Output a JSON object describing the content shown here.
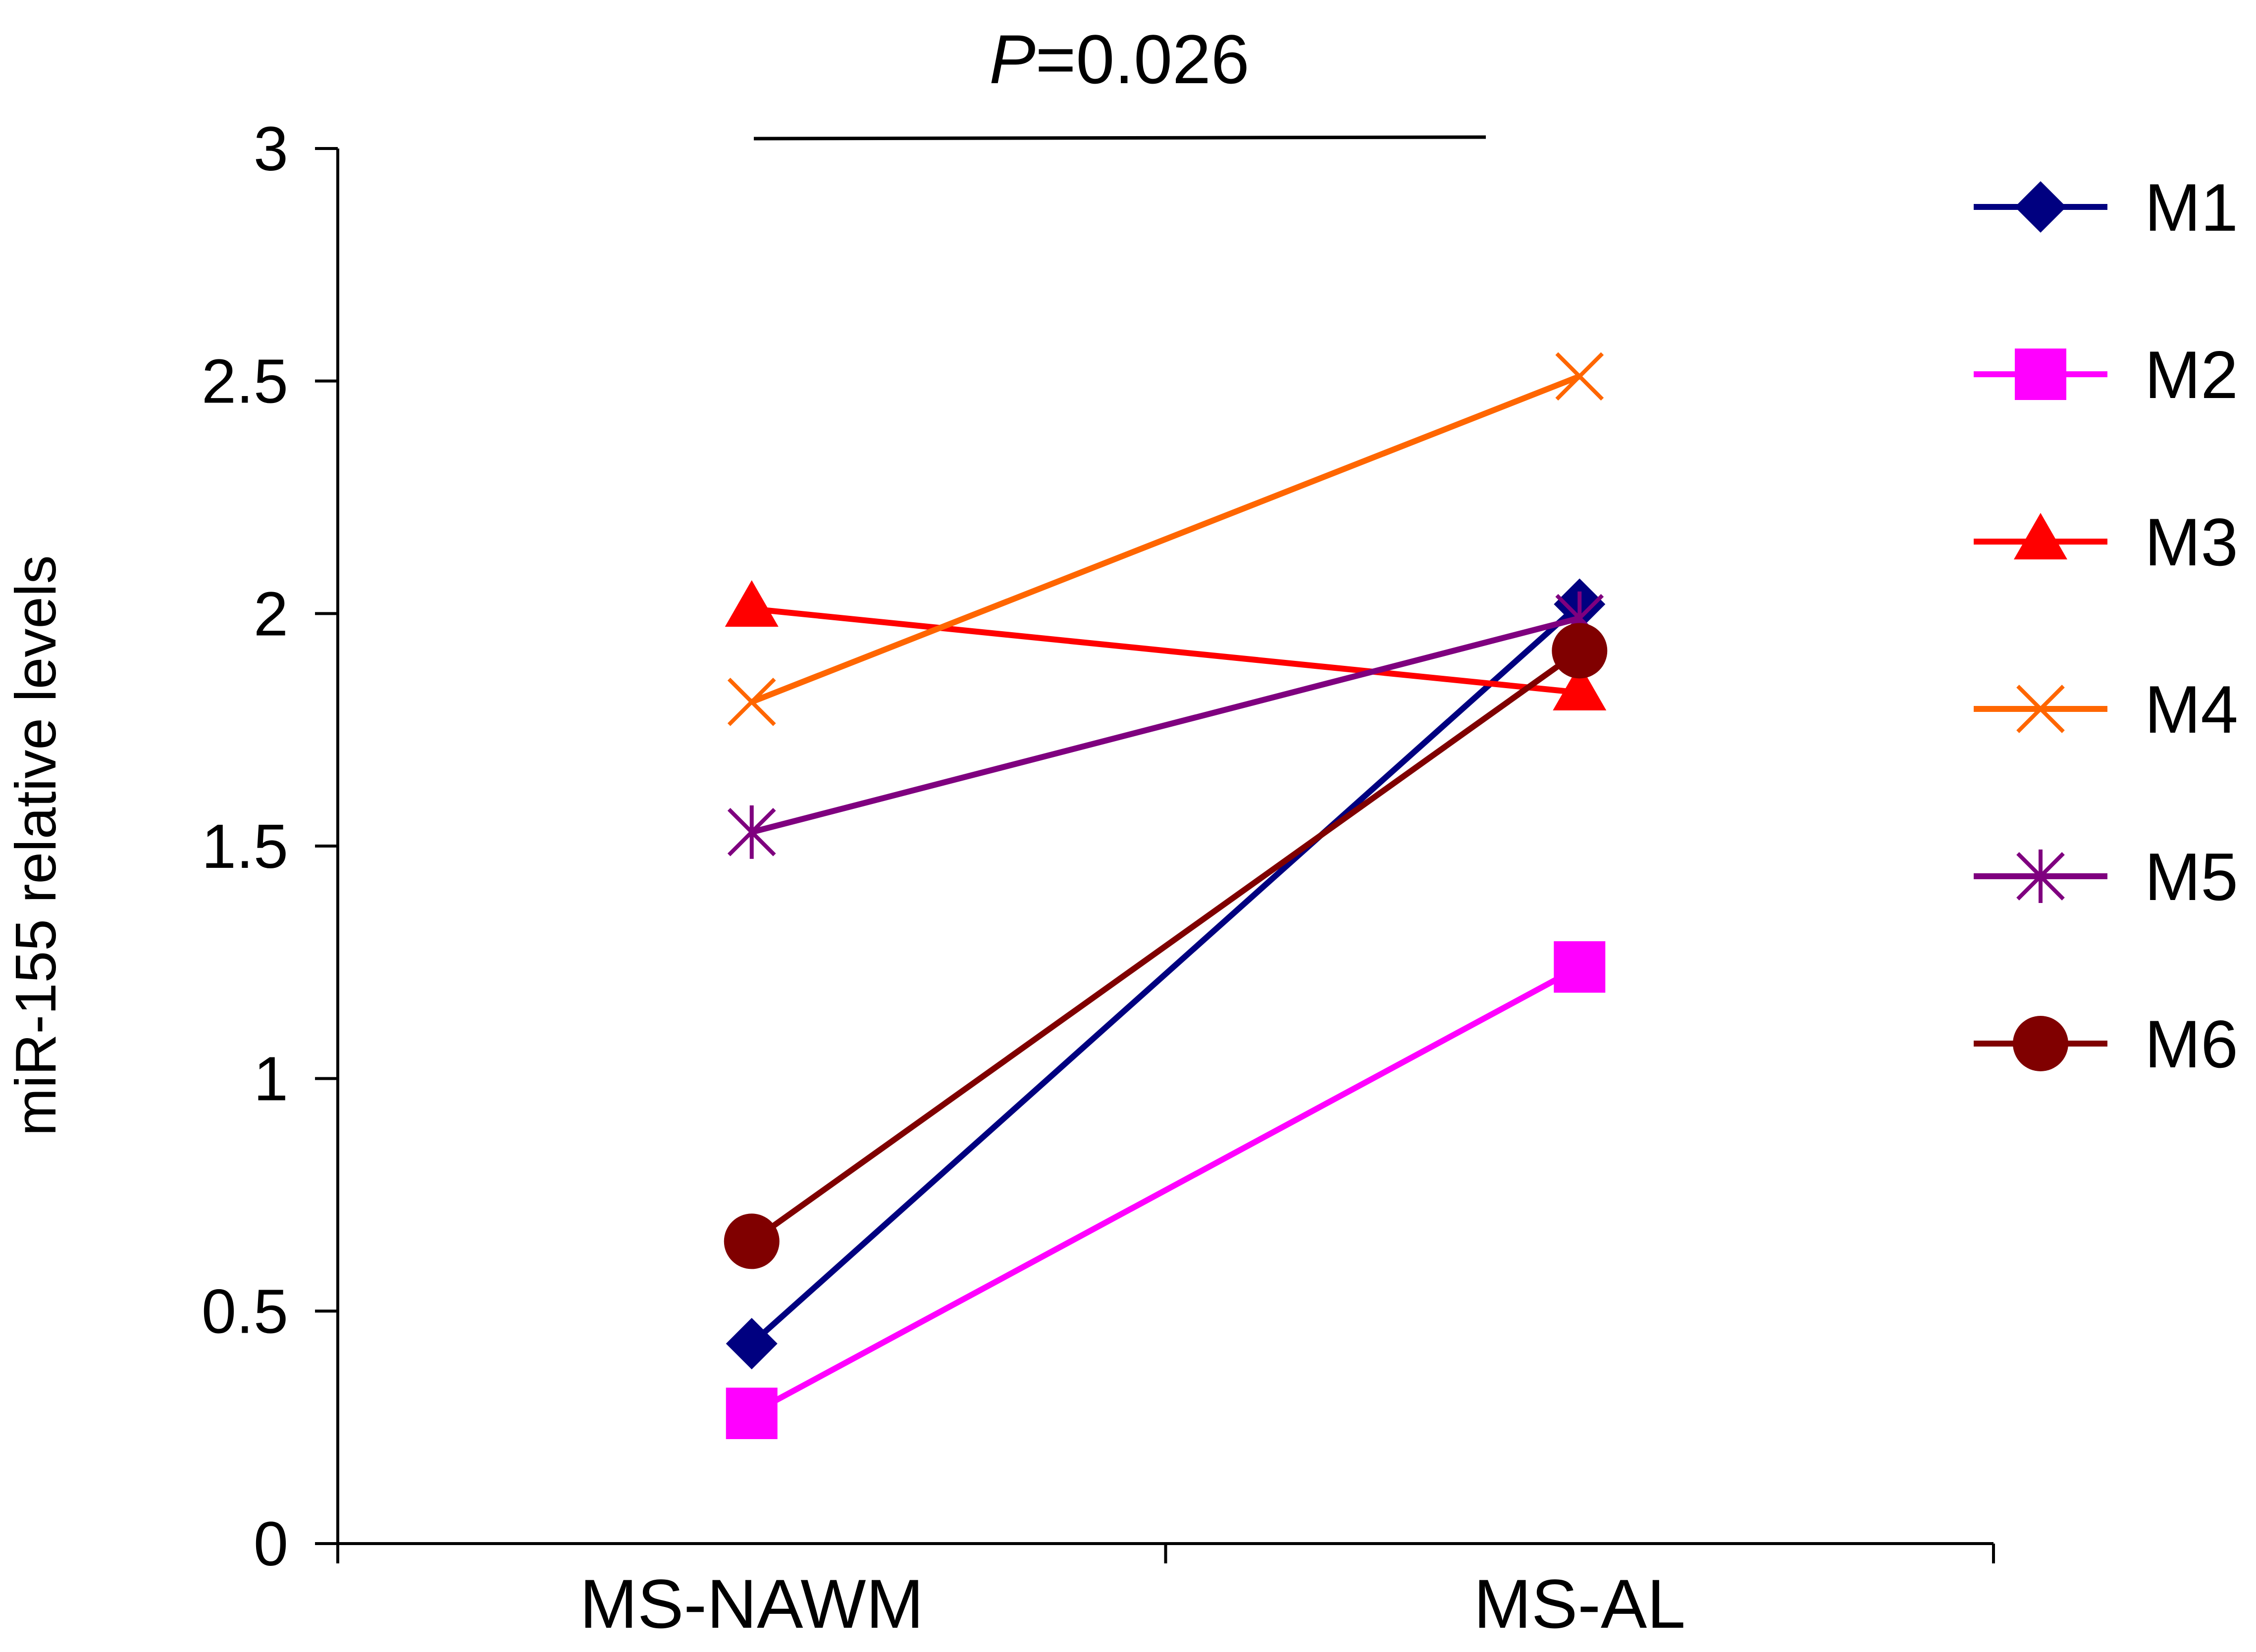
{
  "chart_data": {
    "type": "line",
    "title": "",
    "xlabel": "",
    "ylabel": "miR-155 relative levels",
    "categories": [
      "MS-NAWM",
      "MS-AL"
    ],
    "ylim": [
      0,
      3
    ],
    "yticks": [
      "0",
      "0.5",
      "1",
      "1.5",
      "2",
      "2.5",
      "3"
    ],
    "grid": false,
    "legend_position": "right",
    "annotation": {
      "p_label": "P",
      "p_value": "=0.026"
    },
    "series": [
      {
        "name": "M1",
        "values": [
          0.43,
          2.02
        ],
        "color": "#000080",
        "marker": "diamond"
      },
      {
        "name": "M2",
        "values": [
          0.28,
          1.24
        ],
        "color": "#FF00FF",
        "marker": "square"
      },
      {
        "name": "M3",
        "values": [
          2.01,
          1.83
        ],
        "color": "#FF0000",
        "marker": "triangle"
      },
      {
        "name": "M4",
        "values": [
          1.81,
          2.51
        ],
        "color": "#FF6600",
        "marker": "x"
      },
      {
        "name": "M5",
        "values": [
          1.53,
          1.99
        ],
        "color": "#7F007F",
        "marker": "star"
      },
      {
        "name": "M6",
        "values": [
          0.65,
          1.92
        ],
        "color": "#800000",
        "marker": "circle"
      }
    ]
  }
}
